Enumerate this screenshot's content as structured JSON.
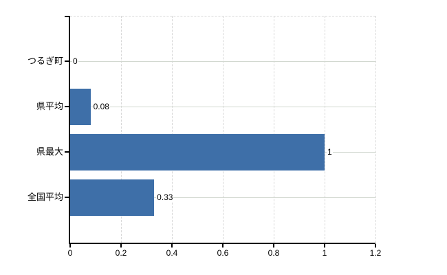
{
  "chart_data": {
    "type": "bar",
    "orientation": "horizontal",
    "title": "",
    "xlabel": "",
    "ylabel": "",
    "categories": [
      "つるぎ町",
      "県平均",
      "県最大",
      "全国平均"
    ],
    "values": [
      0,
      0.08,
      1,
      0.33
    ],
    "value_labels": [
      "0",
      "0.08",
      "1",
      "0.33"
    ],
    "xlim": [
      0,
      1.2
    ],
    "x_tick_values": [
      0,
      0.2,
      0.4,
      0.6,
      0.8,
      1,
      1.2
    ],
    "x_tick_labels": [
      "0",
      "0.2",
      "0.4",
      "0.6",
      "0.8",
      "1",
      "1.2"
    ],
    "grid": "on",
    "legend": "none",
    "colors": {
      "bar": "#3e6fa8",
      "horizontal_gridline": "#d2d8d0",
      "vertical_gridline_dashed": "#d7d7d7",
      "axis": "#000000",
      "text": "#000000",
      "background": "#ffffff"
    }
  }
}
